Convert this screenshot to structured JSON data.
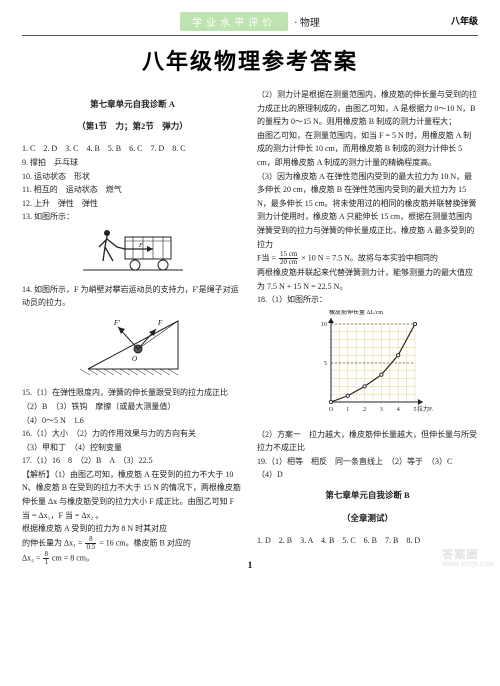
{
  "header": {
    "banner_text": "学业水平评价",
    "subject": "· 物理",
    "grade": "八年级"
  },
  "main_title": "八年级物理参考答案",
  "left_col": {
    "sec_a_title": "第七章单元自我诊断 A",
    "sec_a_sub": "（第1节　力；第2节　弹力）",
    "l1": "1. C　2. D　3. C　4. B　5. B　6. C　7. D　8. C",
    "l9": "9. 撑拍　乒乓球",
    "l10": "10. 运动状态　形状",
    "l11": "11. 相互的　运动状态　燃气",
    "l12": "12. 上升　弹性　弹性",
    "l13": "13. 如图所示：",
    "l14": "14. 如图所示，F 为峭壁对攀岩运动员的支持力，F′是绳子对运动员的拉力。",
    "l15": "15.（1）在弹性限度内，弹簧的伸长量跟受到的拉力成正比",
    "l15b": "（2）B　（3）铁钩　摩擦（或最大测量值）",
    "l15c": "（4）0～5 N　1.6",
    "l16": "16.（1）大小　（2）力的作用效果与力的方向有关",
    "l16b": "（3）甲和丁　（4）控制变量",
    "l17": "17.（1）16　8　（2）B　A　（3）22.5",
    "l17exp1": "【解析】（1）由图乙可知，橡皮筋 A 在受到的拉力不大于 10 N、橡皮筋 B 在受到的拉力不大于 15 N 的情况下，两根橡皮筋伸长量 Δx 与橡皮筋受到的拉力大小 F 成正比。由图乙可知 F 当 = Δx₁，F 当 = Δx₂ 。",
    "l17exp2": "根据橡皮筋 A 受到的拉力为 8 N 时其对应",
    "l17exp3a": "的伸长量为 Δx₁ = ",
    "l17exp3_num": "8",
    "l17exp3_den": "0.5",
    "l17exp3b": " = 16 cm。橡皮筋 B 对应的",
    "l17exp4a": "Δx₂ = ",
    "l17exp4_num": "8",
    "l17exp4_den": "1",
    "l17exp4b": " cm = 8 cm。"
  },
  "right_col": {
    "r1": "（2）测力计是根据在测量范围内，橡皮筋的伸长量与受到的拉力成正比的原理制成的，由图乙可知，A 是根据力 0～10 N，B 的量程为 0～15 N。则用橡皮筋 B 制成的测力计量程大；",
    "r2": "由图乙可知，在测量范围内，如当 F = 5 N 时，用橡皮筋 A 制成的测力计伸长 10 cm，而用橡皮筋 B 制成的测力计伸长 5 cm，即用橡皮筋 A 制成的测力计量的精确程度高。",
    "r3": "（3）因为橡皮筋 A 在弹性范围内受到的最大拉力为 10 N，最多伸长 20 cm，橡皮筋 B 在弹性范围内受到的最大拉力为 15 N，最多伸长 15 cm。将未使用过的相同的橡皮筋并联替换弹簧测力计使用时，橡皮筋 A 只能伸长 15 cm，根据在测量范围内弹簧受到的拉力与弹簧的伸长量成正比，橡皮筋 A 最多受到的拉力",
    "r3fa": "F当 = ",
    "r3f_num": "15 cm",
    "r3f_den": "20 cm",
    "r3fb": " × 10 N = 7.5 N。故将与本实验中相同的",
    "r4": "两根橡皮筋并联起来代替弹簧测力计，能够测量力的最大值应为 7.5 N + 15 N = 22.5 N。",
    "l18": "18.（1）如图所示：",
    "chart": {
      "type": "line",
      "xlabel": "拉力F/N",
      "ylabel": "橡皮筋伸长量 ΔL/cm",
      "xlim": [
        0,
        5
      ],
      "ylim": [
        0,
        10
      ],
      "xticks": [
        "O",
        "1",
        "2",
        "3",
        "4",
        "5"
      ],
      "yticks": [
        "5",
        "10"
      ],
      "points_x": [
        0,
        1,
        2,
        3,
        4,
        5
      ],
      "points_y": [
        0,
        0.8,
        2.0,
        3.5,
        6.0,
        10
      ],
      "bg": "#ffffff",
      "grid": "#e6d08a",
      "line_color": "#222222",
      "marker": "circle"
    },
    "r5": "（2）方案一　拉力越大，橡皮筋伸长量越大，但伸长量与所受拉力不成正比",
    "r19": "19.（1）相等　相反　同一条直线上　（2）等于　（3）C",
    "r19b": "（4）D",
    "sec_b_title": "第七章单元自我诊断 B",
    "sec_b_sub": "（全章测试）",
    "rb1": "1. D　2. B　3. A　4. B　5. C　6. B　7. B　8. D"
  },
  "page_number": "1",
  "watermark": {
    "main": "答案圈",
    "sub": "WWW.MXQE.COM"
  },
  "colors": {
    "banner_bg": "#bde3b0",
    "banner_fg": "#ffffff",
    "text": "#222222",
    "chart_grid": "#e6d08a"
  }
}
